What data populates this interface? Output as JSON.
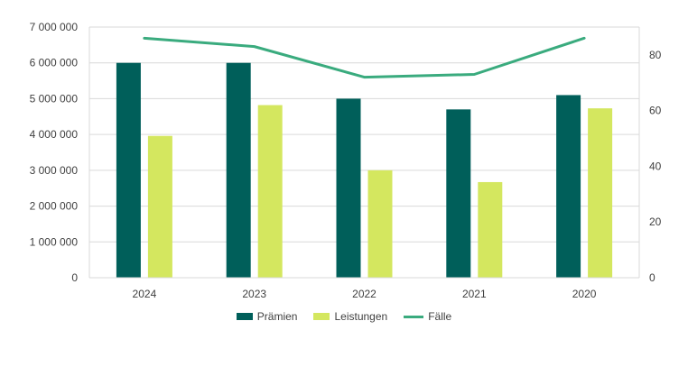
{
  "chart_data": {
    "type": "bar",
    "title": "",
    "xlabel": "",
    "ylabel": "",
    "categories": [
      "2024",
      "2023",
      "2022",
      "2021",
      "2020"
    ],
    "series": [
      {
        "name": "Prämien",
        "kind": "bar",
        "axis": "left",
        "color": "#005f5a",
        "values": [
          6000000,
          6000000,
          5000000,
          4700000,
          5100000
        ]
      },
      {
        "name": "Leistungen",
        "kind": "bar",
        "axis": "left",
        "color": "#d4e75f",
        "values": [
          3960000,
          4820000,
          3000000,
          2670000,
          4730000
        ]
      },
      {
        "name": "Fälle",
        "kind": "line",
        "axis": "right",
        "color": "#3aab7e",
        "values": [
          86,
          83,
          72,
          73,
          86
        ]
      }
    ],
    "ylim": [
      0,
      7000000
    ],
    "y_ticks": [
      "0",
      "1 000 000",
      "2 000 000",
      "3 000 000",
      "4 000 000",
      "5 000 000",
      "6 000 000",
      "7 000 000"
    ],
    "y2lim": [
      0,
      90
    ],
    "y2_ticks": [
      "0",
      "20",
      "40",
      "60",
      "80"
    ],
    "grid": true,
    "legend_position": "bottom"
  }
}
